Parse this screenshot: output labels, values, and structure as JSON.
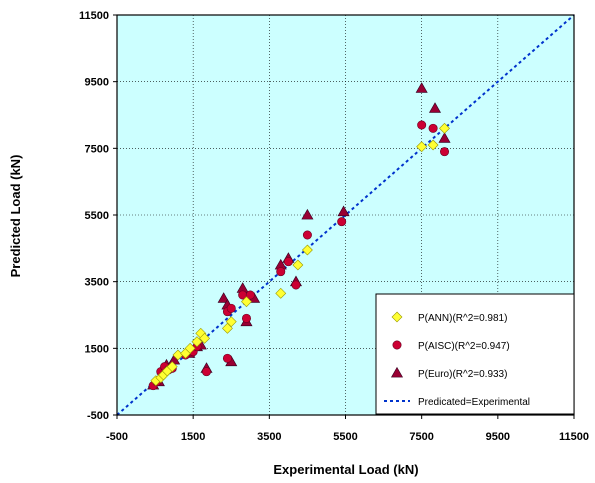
{
  "chart_data": {
    "type": "scatter",
    "title": "",
    "xlabel": "Experimental Load (kN)",
    "ylabel": "Predicted Load (kN)",
    "xlim": [
      -500,
      11500
    ],
    "ylim": [
      -500,
      11500
    ],
    "xticks": [
      "-500",
      "1500",
      "3500",
      "5500",
      "7500",
      "9500",
      "11500"
    ],
    "yticks": [
      "-500",
      "1500",
      "3500",
      "5500",
      "7500",
      "9500",
      "11500"
    ],
    "grid": true,
    "legend_position": "bottom-right",
    "plot_background": "#ccffff",
    "series": [
      {
        "name": "P(ANN)(R^2=0.981)",
        "marker": "diamond",
        "color": "#ffff33",
        "points": [
          [
            520,
            530
          ],
          [
            650,
            620
          ],
          [
            720,
            700
          ],
          [
            820,
            820
          ],
          [
            950,
            950
          ],
          [
            1100,
            1300
          ],
          [
            1300,
            1350
          ],
          [
            1420,
            1500
          ],
          [
            1600,
            1700
          ],
          [
            1700,
            1950
          ],
          [
            1800,
            1800
          ],
          [
            2400,
            2100
          ],
          [
            2500,
            2300
          ],
          [
            2900,
            2900
          ],
          [
            3800,
            3150
          ],
          [
            4250,
            4000
          ],
          [
            4500,
            4450
          ],
          [
            7500,
            7550
          ],
          [
            7800,
            7600
          ],
          [
            8100,
            8100
          ]
        ]
      },
      {
        "name": "P(AISC)(R^2=0.947)",
        "marker": "circle",
        "color": "#cc0033",
        "points": [
          [
            450,
            380
          ],
          [
            550,
            500
          ],
          [
            650,
            800
          ],
          [
            750,
            950
          ],
          [
            850,
            850
          ],
          [
            950,
            900
          ],
          [
            1300,
            1300
          ],
          [
            1500,
            1400
          ],
          [
            1600,
            1550
          ],
          [
            1850,
            800
          ],
          [
            2400,
            1200
          ],
          [
            2400,
            2600
          ],
          [
            2500,
            2700
          ],
          [
            2800,
            3100
          ],
          [
            2900,
            2400
          ],
          [
            3000,
            3100
          ],
          [
            3800,
            3800
          ],
          [
            4000,
            4100
          ],
          [
            4200,
            3400
          ],
          [
            4500,
            4900
          ],
          [
            5400,
            5300
          ],
          [
            7500,
            8200
          ],
          [
            7800,
            8100
          ],
          [
            8100,
            7400
          ]
        ]
      },
      {
        "name": "P(Euro)(R^2=0.933)",
        "marker": "triangle",
        "color": "#990033",
        "points": [
          [
            450,
            400
          ],
          [
            600,
            500
          ],
          [
            700,
            850
          ],
          [
            800,
            1000
          ],
          [
            900,
            950
          ],
          [
            1000,
            1150
          ],
          [
            1400,
            1350
          ],
          [
            1600,
            1550
          ],
          [
            1700,
            1600
          ],
          [
            1850,
            900
          ],
          [
            2300,
            3000
          ],
          [
            2400,
            2800
          ],
          [
            2500,
            1100
          ],
          [
            2800,
            3300
          ],
          [
            2900,
            2300
          ],
          [
            3100,
            3000
          ],
          [
            3800,
            4000
          ],
          [
            4000,
            4200
          ],
          [
            4200,
            3500
          ],
          [
            4500,
            5500
          ],
          [
            5450,
            5600
          ],
          [
            7500,
            9300
          ],
          [
            7850,
            8700
          ],
          [
            8100,
            7800
          ]
        ]
      }
    ],
    "reference_line": {
      "name": "Predicated=Experimental",
      "color": "#0033cc",
      "points": [
        [
          -500,
          -500
        ],
        [
          11500,
          11500
        ]
      ]
    }
  }
}
